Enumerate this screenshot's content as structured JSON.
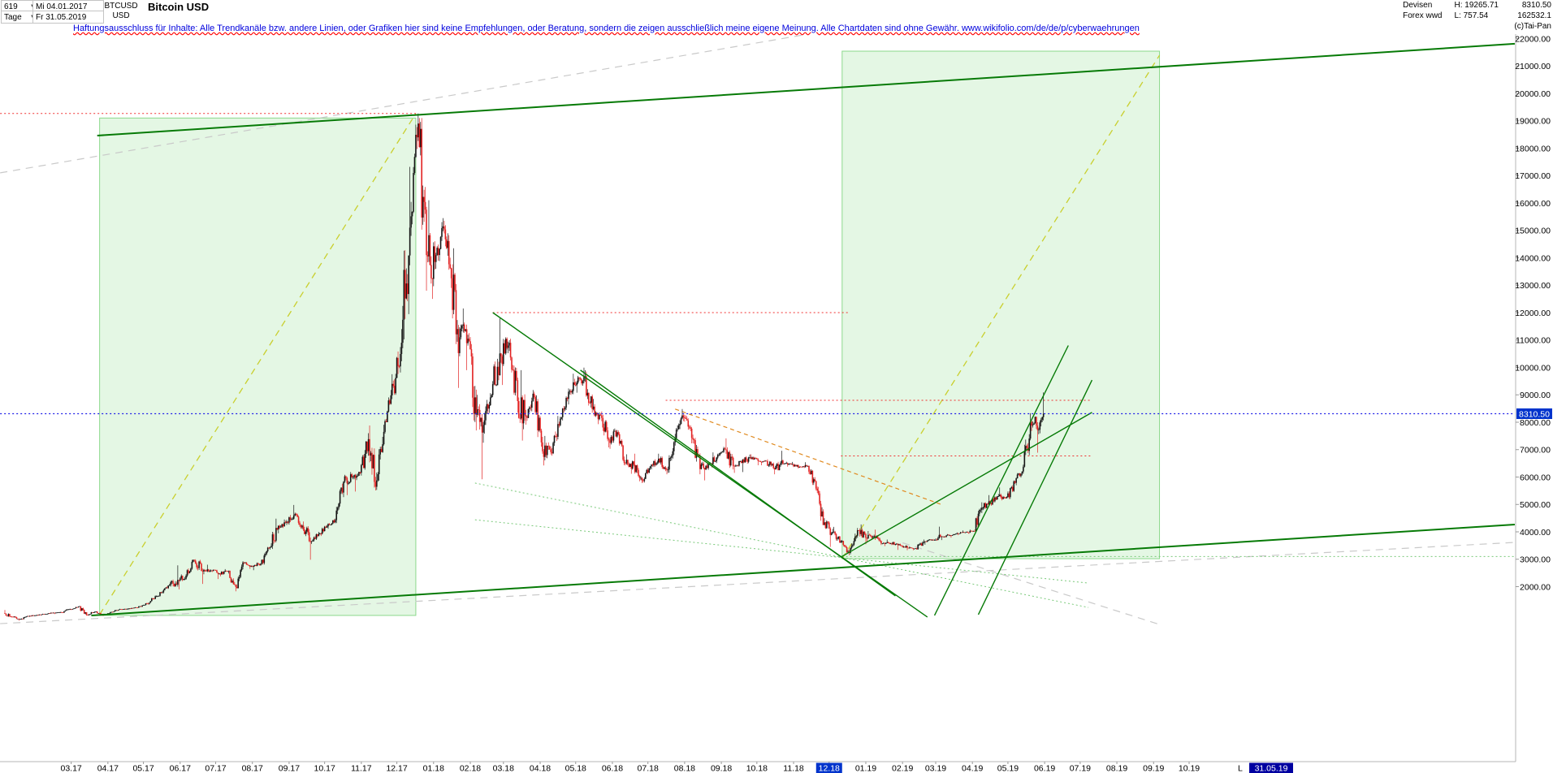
{
  "header": {
    "bars_count": "619",
    "period": "Tage",
    "date_first": "Mi 04.01.2017",
    "date_last": "Fr 31.05.2019",
    "symbol": "BTCUSD",
    "currency": "USD",
    "title": "Bitcoin USD",
    "category": "Devisen",
    "feed": "Forex wwd",
    "high": "H: 19265.71",
    "low": "L: 757.54",
    "last": "8310.50",
    "volume": "162532.1",
    "copyright": "(c)Tai-Pan"
  },
  "disclaimer": "Haftungsausschluss für Inhalte: Alle Trendkanäle bzw. andere Linien, oder Grafiken hier sind keine Empfehlungen, oder Beratung, sondern die zeigen ausschließlich meine eigene Meinung. Alle Chartdaten sind ohne Gewähr.  www.wikifolio.com/de/de/p/cyberwaehrungen",
  "colors": {
    "up": "#151515",
    "down": "#e22222",
    "channel": "#067a06",
    "box_fill": "rgba(165,228,165,0.30)",
    "box_border": "#8cd98c",
    "yellow": "#c9cf2d",
    "gray": "#c9c9c9",
    "orange": "#e08a20",
    "red_line": "#f03030",
    "blue_line": "#1f1fe8",
    "light_green": "#79c979",
    "label_bg": "#0033cc"
  },
  "chart_data": {
    "type": "candlestick",
    "title": "Bitcoin USD",
    "symbol": "BTCUSD",
    "currency": "USD",
    "timeframe": "Tage",
    "bars": 619,
    "start_date": "2017-01-04",
    "end_date": "2019-05-31",
    "stats": {
      "high": 19265.71,
      "low": 757.54,
      "last": 8310.5
    },
    "y_axis": {
      "min_label": 2000,
      "max_label": 22000,
      "step": 1000,
      "format": "0.00"
    },
    "x_axis_months": [
      {
        "m": "03.17",
        "d": 56
      },
      {
        "m": "04.17",
        "d": 87
      },
      {
        "m": "05.17",
        "d": 117
      },
      {
        "m": "06.17",
        "d": 148
      },
      {
        "m": "07.17",
        "d": 178
      },
      {
        "m": "08.17",
        "d": 209
      },
      {
        "m": "09.17",
        "d": 240
      },
      {
        "m": "10.17",
        "d": 270
      },
      {
        "m": "11.17",
        "d": 301
      },
      {
        "m": "12.17",
        "d": 331
      },
      {
        "m": "01.18",
        "d": 362
      },
      {
        "m": "02.18",
        "d": 393
      },
      {
        "m": "03.18",
        "d": 421
      },
      {
        "m": "04.18",
        "d": 452
      },
      {
        "m": "05.18",
        "d": 482
      },
      {
        "m": "06.18",
        "d": 513
      },
      {
        "m": "07.18",
        "d": 543
      },
      {
        "m": "08.18",
        "d": 574
      },
      {
        "m": "09.18",
        "d": 605
      },
      {
        "m": "10.18",
        "d": 635
      },
      {
        "m": "11.18",
        "d": 666
      },
      {
        "m": "12.18",
        "d": 696
      },
      {
        "m": "01.19",
        "d": 727
      },
      {
        "m": "02.19",
        "d": 758
      },
      {
        "m": "03.19",
        "d": 786
      },
      {
        "m": "04.19",
        "d": 817
      },
      {
        "m": "05.19",
        "d": 847
      },
      {
        "m": "06.19",
        "d": 878
      },
      {
        "m": "07.19",
        "d": 908
      },
      {
        "m": "08.19",
        "d": 939
      },
      {
        "m": "09.19",
        "d": 970
      },
      {
        "m": "10.19",
        "d": 1000
      }
    ],
    "highlighted_month": "12.18",
    "last_bar_label": {
      "prefix": "L",
      "date": "31.05.19"
    },
    "weekly_ohlc": [
      [
        0,
        1030,
        1150,
        880,
        905
      ],
      [
        7,
        905,
        920,
        757.54,
        820
      ],
      [
        14,
        820,
        930,
        800,
        920
      ],
      [
        21,
        920,
        970,
        900,
        965
      ],
      [
        28,
        965,
        1010,
        950,
        1005
      ],
      [
        35,
        1005,
        1065,
        995,
        1050
      ],
      [
        42,
        1050,
        1080,
        1000,
        1060
      ],
      [
        49,
        1060,
        1200,
        1050,
        1180
      ],
      [
        56,
        1180,
        1280,
        1150,
        1270
      ],
      [
        63,
        1270,
        1290,
        940,
        970
      ],
      [
        70,
        970,
        1100,
        950,
        1080
      ],
      [
        77,
        1080,
        1100,
        930,
        965
      ],
      [
        84,
        965,
        1080,
        960,
        1080
      ],
      [
        91,
        1080,
        1190,
        1075,
        1180
      ],
      [
        98,
        1180,
        1210,
        1160,
        1190
      ],
      [
        105,
        1190,
        1250,
        1180,
        1240
      ],
      [
        112,
        1240,
        1340,
        1230,
        1330
      ],
      [
        119,
        1330,
        1590,
        1320,
        1560
      ],
      [
        126,
        1560,
        1800,
        1550,
        1780
      ],
      [
        133,
        1780,
        2100,
        1750,
        2050
      ],
      [
        140,
        2050,
        2780,
        2000,
        2250
      ],
      [
        147,
        2250,
        2450,
        1900,
        2400
      ],
      [
        154,
        2400,
        2980,
        2350,
        2950
      ],
      [
        161,
        2950,
        3000,
        2100,
        2550
      ],
      [
        168,
        2550,
        2800,
        2450,
        2590
      ],
      [
        175,
        2590,
        2620,
        2280,
        2480
      ],
      [
        182,
        2480,
        2640,
        2380,
        2560
      ],
      [
        189,
        2560,
        2580,
        1830,
        1990
      ],
      [
        196,
        1990,
        2930,
        1940,
        2870
      ],
      [
        203,
        2870,
        2900,
        2650,
        2730
      ],
      [
        210,
        2730,
        2880,
        2600,
        2840
      ],
      [
        217,
        2840,
        3450,
        2810,
        3420
      ],
      [
        224,
        3420,
        4480,
        3350,
        4090
      ],
      [
        231,
        4090,
        4450,
        3950,
        4330
      ],
      [
        238,
        4330,
        4980,
        4250,
        4600
      ],
      [
        245,
        4600,
        4700,
        4110,
        4230
      ],
      [
        252,
        4230,
        4380,
        2980,
        3630
      ],
      [
        259,
        3630,
        4000,
        3560,
        3930
      ],
      [
        266,
        3930,
        4250,
        3850,
        4200
      ],
      [
        273,
        4200,
        4480,
        4110,
        4430
      ],
      [
        280,
        4430,
        5850,
        4320,
        5830
      ],
      [
        287,
        5830,
        6180,
        5340,
        5990
      ],
      [
        294,
        5990,
        6190,
        5470,
        6150
      ],
      [
        301,
        6150,
        7600,
        6050,
        7380
      ],
      [
        308,
        7380,
        7880,
        5510,
        5880
      ],
      [
        315,
        5880,
        8100,
        5830,
        8040
      ],
      [
        322,
        8040,
        9750,
        8000,
        9330
      ],
      [
        329,
        9330,
        11400,
        9000,
        10900
      ],
      [
        336,
        10900,
        17320,
        10700,
        15100
      ],
      [
        343,
        15100,
        19265.71,
        14800,
        18900
      ],
      [
        350,
        18900,
        19100,
        12800,
        14100
      ],
      [
        357,
        14100,
        16100,
        12500,
        13850
      ],
      [
        364,
        13850,
        15450,
        13600,
        15150
      ],
      [
        371,
        15150,
        15350,
        12900,
        13250
      ],
      [
        378,
        13250,
        14350,
        9250,
        11100
      ],
      [
        385,
        11100,
        12150,
        9900,
        11050
      ],
      [
        392,
        11050,
        11250,
        7700,
        8270
      ],
      [
        399,
        8270,
        9000,
        5920,
        8070
      ],
      [
        406,
        8070,
        9500,
        7900,
        9390
      ],
      [
        413,
        9390,
        11790,
        9350,
        10400
      ],
      [
        420,
        10400,
        11100,
        9360,
        10900
      ],
      [
        427,
        10900,
        11050,
        8350,
        8770
      ],
      [
        434,
        8770,
        9900,
        7330,
        8210
      ],
      [
        441,
        8210,
        9180,
        8050,
        8920
      ],
      [
        448,
        8920,
        8980,
        6850,
        6940
      ],
      [
        455,
        6940,
        7500,
        6425,
        6910
      ],
      [
        462,
        6910,
        8230,
        6780,
        7890
      ],
      [
        469,
        7890,
        8940,
        7850,
        8850
      ],
      [
        476,
        8850,
        9770,
        8650,
        9350
      ],
      [
        483,
        9350,
        9990,
        9080,
        9650
      ],
      [
        490,
        9650,
        9900,
        8350,
        8480
      ],
      [
        497,
        8480,
        8850,
        7930,
        8250
      ],
      [
        504,
        8250,
        8390,
        7080,
        7360
      ],
      [
        511,
        7360,
        7770,
        7030,
        7640
      ],
      [
        518,
        7640,
        7700,
        6430,
        6510
      ],
      [
        525,
        6510,
        6830,
        6120,
        6450
      ],
      [
        532,
        6450,
        6850,
        5780,
        5880
      ],
      [
        539,
        5880,
        6390,
        5800,
        6390
      ],
      [
        546,
        6390,
        6850,
        6280,
        6670
      ],
      [
        553,
        6670,
        6750,
        6100,
        6250
      ],
      [
        560,
        6250,
        7580,
        6150,
        7410
      ],
      [
        567,
        7410,
        8480,
        7280,
        8180
      ],
      [
        574,
        8180,
        8280,
        7230,
        7430
      ],
      [
        581,
        7430,
        7550,
        6100,
        6290
      ],
      [
        588,
        6290,
        6560,
        5880,
        6480
      ],
      [
        595,
        6480,
        6900,
        6350,
        6710
      ],
      [
        602,
        6710,
        7100,
        6650,
        7010
      ],
      [
        609,
        7010,
        7410,
        6280,
        6410
      ],
      [
        616,
        6410,
        6590,
        6150,
        6520
      ],
      [
        623,
        6520,
        6820,
        6180,
        6720
      ],
      [
        630,
        6720,
        6830,
        6430,
        6590
      ],
      [
        637,
        6590,
        6620,
        6430,
        6580
      ],
      [
        644,
        6580,
        6650,
        6100,
        6280
      ],
      [
        651,
        6280,
        6960,
        6250,
        6480
      ],
      [
        658,
        6480,
        6560,
        6380,
        6460
      ],
      [
        665,
        6460,
        6550,
        6310,
        6380
      ],
      [
        672,
        6380,
        6540,
        6330,
        6400
      ],
      [
        679,
        6400,
        6430,
        5510,
        5580
      ],
      [
        686,
        5580,
        5650,
        4250,
        4350
      ],
      [
        693,
        4350,
        4420,
        3450,
        4000
      ],
      [
        700,
        4000,
        4180,
        3600,
        3660
      ],
      [
        707,
        3660,
        3700,
        3150,
        3230
      ],
      [
        714,
        3230,
        4140,
        3180,
        4060
      ],
      [
        721,
        4060,
        4270,
        3550,
        3780
      ],
      [
        728,
        3780,
        4030,
        3620,
        3850
      ],
      [
        735,
        3850,
        4080,
        3520,
        3580
      ],
      [
        742,
        3580,
        3720,
        3480,
        3580
      ],
      [
        749,
        3580,
        3640,
        3340,
        3550
      ],
      [
        756,
        3550,
        3570,
        3330,
        3420
      ],
      [
        763,
        3420,
        3470,
        3330,
        3400
      ],
      [
        770,
        3400,
        3720,
        3350,
        3640
      ],
      [
        777,
        3640,
        3730,
        3530,
        3710
      ],
      [
        784,
        3710,
        4190,
        3700,
        3810
      ],
      [
        791,
        3810,
        3920,
        3700,
        3870
      ],
      [
        798,
        3870,
        3980,
        3790,
        3950
      ],
      [
        805,
        3950,
        4050,
        3880,
        3980
      ],
      [
        812,
        3980,
        4080,
        3930,
        4030
      ],
      [
        819,
        4030,
        5080,
        4020,
        4880
      ],
      [
        826,
        4880,
        5340,
        4790,
        5060
      ],
      [
        833,
        5060,
        5380,
        4950,
        5300
      ],
      [
        840,
        5300,
        5620,
        5150,
        5270
      ],
      [
        847,
        5270,
        5880,
        5200,
        5790
      ],
      [
        854,
        5790,
        6450,
        5700,
        6380
      ],
      [
        861,
        6380,
        8330,
        6350,
        7880
      ],
      [
        868,
        7880,
        8200,
        6890,
        7990
      ],
      [
        875,
        7990,
        9090,
        7850,
        8310.5
      ]
    ],
    "horizontal_lines": [
      {
        "price": 19265.71,
        "day_from": -4,
        "day_to": 347,
        "style": "red_dotted"
      },
      {
        "price": 12000,
        "day_from": 412,
        "day_to": 713,
        "style": "red_dotted"
      },
      {
        "price": 8800,
        "day_from": 558,
        "day_to": 918,
        "style": "red_dotted"
      },
      {
        "price": 6770,
        "day_from": 706,
        "day_to": 918,
        "style": "red_dotted"
      },
      {
        "price": 3100,
        "day_from": 700,
        "day_to": 1275,
        "style": "green_dotted"
      },
      {
        "price": 8310.5,
        "day_from": -4,
        "day_to": 1275,
        "style": "blue_dotted"
      }
    ],
    "trend_lines": [
      {
        "d1": 78,
        "p1": 18460,
        "d2": 1275,
        "p2": 21810,
        "style": "channel"
      },
      {
        "d1": 73,
        "p1": 948,
        "d2": 1275,
        "p2": 4267,
        "style": "channel"
      },
      {
        "d1": 412,
        "p1": 12000,
        "d2": 779,
        "p2": 890,
        "style": "trend"
      },
      {
        "d1": 486,
        "p1": 9900,
        "d2": 752,
        "p2": 1660,
        "style": "trend"
      },
      {
        "d1": 785,
        "p1": 950,
        "d2": 898,
        "p2": 10800,
        "style": "trend"
      },
      {
        "d1": 822,
        "p1": 980,
        "d2": 918,
        "p2": 9540,
        "style": "trend"
      },
      {
        "d1": 706,
        "p1": 3080,
        "d2": 918,
        "p2": 8360,
        "style": "trend"
      },
      {
        "d1": 80,
        "p1": 980,
        "d2": 347,
        "p2": 19260,
        "style": "yellow_dashed"
      },
      {
        "d1": 707,
        "p1": 3020,
        "d2": 975,
        "p2": 21390,
        "style": "yellow_dashed"
      },
      {
        "d1": -4,
        "p1": 17100,
        "d2": 678,
        "p2": 22160,
        "style": "gray_dashed"
      },
      {
        "d1": -4,
        "p1": 650,
        "d2": 1275,
        "p2": 3615,
        "style": "gray_dashed"
      },
      {
        "d1": 758,
        "p1": 3600,
        "d2": 975,
        "p2": 620,
        "style": "gray_dashed"
      },
      {
        "d1": 566,
        "p1": 8480,
        "d2": 792,
        "p2": 4980,
        "style": "orange_dashed"
      },
      {
        "d1": 397,
        "p1": 5780,
        "d2": 915,
        "p2": 1240,
        "style": "green_dotted_line"
      },
      {
        "d1": 397,
        "p1": 4440,
        "d2": 915,
        "p2": 2130,
        "style": "green_dotted_line"
      }
    ],
    "boxes": [
      {
        "d1": 80,
        "d2": 347,
        "p1": 950,
        "p2": 19100
      },
      {
        "d1": 707,
        "d2": 975,
        "p1": 3020,
        "p2": 21540
      }
    ]
  }
}
